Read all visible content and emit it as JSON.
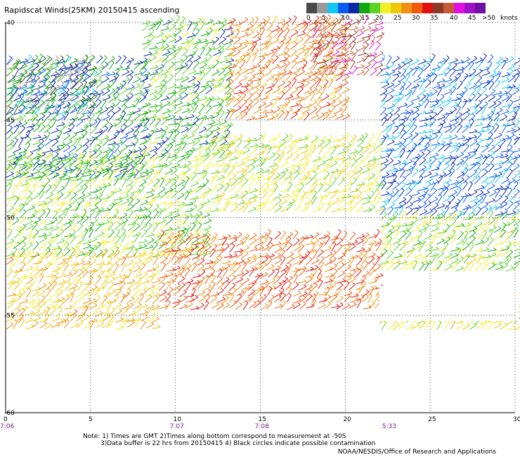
{
  "title": "Rapidscat Winds(25KM) 20150415 ascending",
  "legend": {
    "labels": [
      "0",
      "5",
      "10",
      "15",
      "20",
      "25",
      "30",
      "35",
      "40",
      "45",
      ">50",
      "knots"
    ],
    "colors": [
      "#4a4a4a",
      "#9a9a9a",
      "#12c8f0",
      "#0a5cf0",
      "#0a28a8",
      "#12a812",
      "#5ad228",
      "#f0f028",
      "#f0c80a",
      "#f09010",
      "#f05a0a",
      "#e01010",
      "#8a3a28",
      "#c85a3a",
      "#e010e0",
      "#a010c8",
      "#7010a0"
    ]
  },
  "map": {
    "y_axis_labels": [
      "-40",
      "-45",
      "-50",
      "-55",
      "-60"
    ],
    "x_axis_labels": [
      "0",
      "5",
      "10",
      "15",
      "20",
      "25",
      "30"
    ],
    "time_labels": [
      "7:06",
      "7:07",
      "7:08",
      "5:33"
    ]
  },
  "notes": {
    "line1": "Note:  1) Times are GMT  2)Times along bottom correspond to measurement at -50S",
    "line2": "3)Data buffer is 22 hrs from 20150415  4) Black circles indicate possible contamination",
    "credit": "NOAA/NESDIS/Office of Research and Applications"
  },
  "chart_data": {
    "type": "vector-field",
    "xlim": [
      0,
      30
    ],
    "ylim": [
      -60,
      -40
    ],
    "x_unit": "degrees longitude",
    "y_unit": "degrees latitude",
    "grid": true,
    "legend_position": "top-right",
    "colorbar_knots": [
      0,
      5,
      10,
      15,
      20,
      25,
      30,
      35,
      40,
      45,
      50
    ],
    "regions": [
      {
        "lon": [
          0,
          5
        ],
        "lat": [
          -45,
          -42
        ],
        "speed": 3
      },
      {
        "lon": [
          0,
          8
        ],
        "lat": [
          -48,
          -42
        ],
        "speed": 14
      },
      {
        "lon": [
          8,
          13
        ],
        "lat": [
          -47,
          -40
        ],
        "speed": 17
      },
      {
        "lon": [
          13,
          20
        ],
        "lat": [
          -45,
          -40
        ],
        "speed": 30
      },
      {
        "lon": [
          18,
          22
        ],
        "lat": [
          -43,
          -40
        ],
        "speed": 40
      },
      {
        "lon": [
          22,
          30
        ],
        "lat": [
          -50,
          -42
        ],
        "speed": 10
      },
      {
        "lon": [
          0,
          12
        ],
        "lat": [
          -52,
          -47
        ],
        "speed": 19
      },
      {
        "lon": [
          12,
          22
        ],
        "lat": [
          -50,
          -46
        ],
        "speed": 22
      },
      {
        "lon": [
          0,
          9
        ],
        "lat": [
          -56,
          -52
        ],
        "speed": 26
      },
      {
        "lon": [
          9,
          22
        ],
        "lat": [
          -55,
          -51
        ],
        "speed": 31
      },
      {
        "lon": [
          22,
          30
        ],
        "lat": [
          -53,
          -50
        ],
        "speed": 20
      },
      {
        "lon": [
          22,
          30
        ],
        "lat": [
          -56,
          -54
        ],
        "speed": 23
      }
    ]
  }
}
